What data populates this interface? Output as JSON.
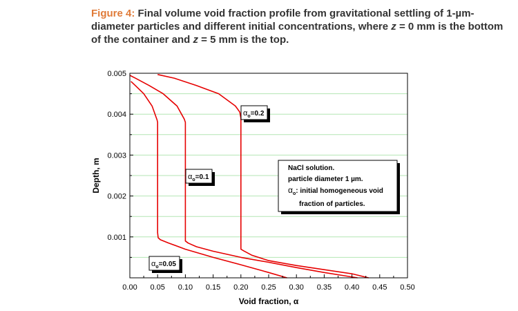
{
  "caption": {
    "figure_label": "Figure 4:",
    "text_1": " Final volume void fraction profile from gravitational settling of 1-µm-diameter particles and different initial concentrations, where ",
    "var_1": "z",
    "text_2": " = 0 mm is the bottom of the container and ",
    "var_2": "z",
    "text_3": " = 5 mm is the top."
  },
  "colors": {
    "curve": "#e60000",
    "grid": "#b3e6b3",
    "caption_accent": "#e07b39"
  },
  "chart_data": {
    "type": "line",
    "xlabel": "Void fraction, α",
    "ylabel": "Depth, m",
    "xlim": [
      0,
      0.5
    ],
    "ylim": [
      0,
      0.005
    ],
    "xticks": [
      "0.00",
      "0.05",
      "0.10",
      "0.15",
      "0.20",
      "0.25",
      "0.30",
      "0.35",
      "0.40",
      "0.45",
      "0.50"
    ],
    "yticks": [
      "0.001",
      "0.002",
      "0.003",
      "0.004",
      "0.005"
    ],
    "grid": "horizontal",
    "series": [
      {
        "name": "α₀=0.05",
        "x": [
          0.283,
          0.25,
          0.2,
          0.15,
          0.1,
          0.07,
          0.055,
          0.051,
          0.05,
          0.05,
          0.05,
          0.05,
          0.049,
          0.04,
          0.025,
          0.01,
          0.002
        ],
        "y": [
          0.0,
          0.00013,
          0.00032,
          0.0005,
          0.0007,
          0.00085,
          0.00093,
          0.00098,
          0.0011,
          0.002,
          0.003,
          0.0038,
          0.00386,
          0.0042,
          0.0045,
          0.0047,
          0.0048
        ]
      },
      {
        "name": "α₀=0.1",
        "x": [
          0.41,
          0.35,
          0.3,
          0.25,
          0.2,
          0.15,
          0.12,
          0.105,
          0.1,
          0.1,
          0.1,
          0.1,
          0.098,
          0.085,
          0.06,
          0.035,
          0.01,
          0.0
        ],
        "y": [
          0.0,
          0.00013,
          0.00025,
          0.00038,
          0.0005,
          0.00065,
          0.00076,
          0.00085,
          0.0009,
          0.002,
          0.003,
          0.0038,
          0.00388,
          0.0042,
          0.0045,
          0.0047,
          0.00488,
          0.00495
        ]
      },
      {
        "name": "α₀=0.2",
        "x": [
          0.43,
          0.4,
          0.35,
          0.3,
          0.25,
          0.22,
          0.205,
          0.2,
          0.2,
          0.2,
          0.2,
          0.198,
          0.19,
          0.16,
          0.12,
          0.08,
          0.05
        ],
        "y": [
          0.0,
          0.0001,
          0.0002,
          0.0003,
          0.00042,
          0.00055,
          0.00066,
          0.0007,
          0.002,
          0.003,
          0.0039,
          0.00405,
          0.0042,
          0.0045,
          0.0047,
          0.00488,
          0.00497
        ]
      }
    ],
    "annotations": [
      {
        "label": "α",
        "sub": "o",
        "rest": "=0.2"
      },
      {
        "label": "α",
        "sub": "o",
        "rest": "=0.1"
      },
      {
        "label": "α",
        "sub": "o",
        "rest": "=0.05"
      }
    ],
    "info_box": {
      "line1": "NaCl solution.",
      "line2": "particle diameter 1 µm.",
      "line3_symbol": "α",
      "line3_sub": "o",
      "line3_rest": ": initial homogeneous void",
      "line4": "fraction of particles."
    }
  }
}
